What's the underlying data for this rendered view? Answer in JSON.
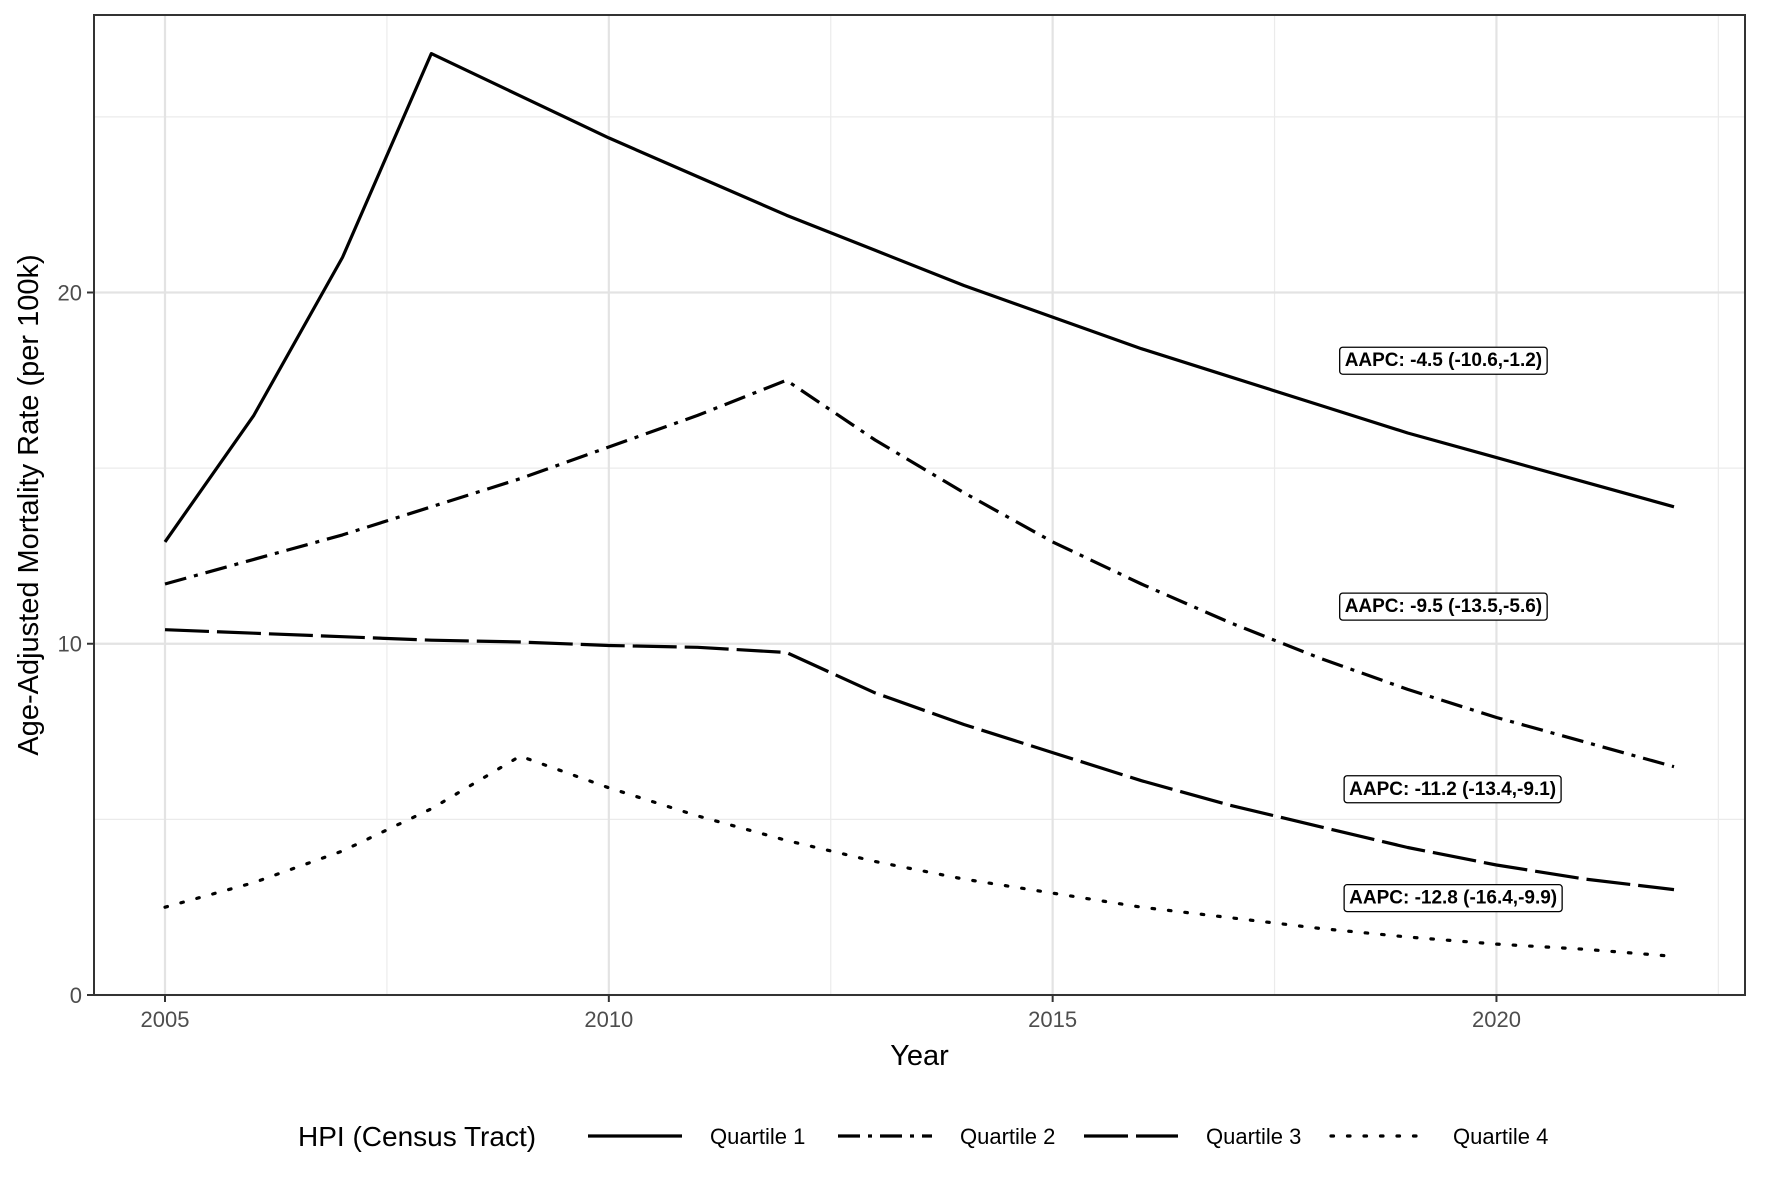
{
  "chart_data": {
    "type": "line",
    "xlabel": "Year",
    "ylabel": "Age-Adjusted Mortality Rate (per 100k)",
    "xlim": [
      2004.2,
      2022.8
    ],
    "ylim": [
      0,
      27.9
    ],
    "x_ticks": [
      2005,
      2010,
      2015,
      2020
    ],
    "y_ticks": [
      0,
      10,
      20
    ],
    "grid": true,
    "legend": {
      "title": "HPI (Census Tract)",
      "position": "bottom"
    },
    "series": [
      {
        "name": "Quartile 1",
        "linetype": "solid",
        "x": [
          2005,
          2006,
          2007,
          2008,
          2009,
          2010,
          2011,
          2012,
          2013,
          2014,
          2015,
          2016,
          2017,
          2018,
          2019,
          2020,
          2021,
          2022
        ],
        "y": [
          12.9,
          16.5,
          21.0,
          26.8,
          25.6,
          24.4,
          23.3,
          22.2,
          21.2,
          20.2,
          19.3,
          18.4,
          17.6,
          16.8,
          16.0,
          15.3,
          14.6,
          13.9
        ],
        "aapc_label": "AAPC: -4.5 (-10.6,-1.2)",
        "aapc_pos": [
          2018.2,
          18.1
        ]
      },
      {
        "name": "Quartile 2",
        "linetype": "dashdot",
        "x": [
          2005,
          2006,
          2007,
          2008,
          2009,
          2010,
          2011,
          2012,
          2013,
          2014,
          2015,
          2016,
          2017,
          2018,
          2019,
          2020,
          2021,
          2022
        ],
        "y": [
          11.7,
          12.4,
          13.1,
          13.9,
          14.7,
          15.6,
          16.5,
          17.5,
          15.8,
          14.3,
          12.9,
          11.7,
          10.6,
          9.6,
          8.7,
          7.9,
          7.2,
          6.5
        ],
        "aapc_label": "AAPC: -9.5 (-13.5,-5.6)",
        "aapc_pos": [
          2018.2,
          11.1
        ]
      },
      {
        "name": "Quartile 3",
        "linetype": "longdash",
        "x": [
          2005,
          2006,
          2007,
          2008,
          2009,
          2010,
          2011,
          2012,
          2013,
          2014,
          2015,
          2016,
          2017,
          2018,
          2019,
          2020,
          2021,
          2022
        ],
        "y": [
          10.4,
          10.3,
          10.2,
          10.1,
          10.05,
          9.95,
          9.9,
          9.75,
          8.6,
          7.7,
          6.9,
          6.1,
          5.4,
          4.8,
          4.2,
          3.7,
          3.3,
          3.0
        ],
        "aapc_label": "AAPC: -11.2 (-13.4,-9.1)",
        "aapc_pos": [
          2018.25,
          5.9
        ]
      },
      {
        "name": "Quartile 4",
        "linetype": "dotted",
        "x": [
          2005,
          2006,
          2007,
          2008,
          2009,
          2010,
          2011,
          2012,
          2013,
          2014,
          2015,
          2016,
          2017,
          2018,
          2019,
          2020,
          2021,
          2022
        ],
        "y": [
          2.5,
          3.2,
          4.1,
          5.3,
          6.8,
          5.9,
          5.1,
          4.4,
          3.8,
          3.3,
          2.9,
          2.5,
          2.2,
          1.9,
          1.65,
          1.45,
          1.3,
          1.1
        ],
        "aapc_label": "AAPC: -12.8 (-16.4,-9.9)",
        "aapc_pos": [
          2018.25,
          2.8
        ]
      }
    ]
  }
}
